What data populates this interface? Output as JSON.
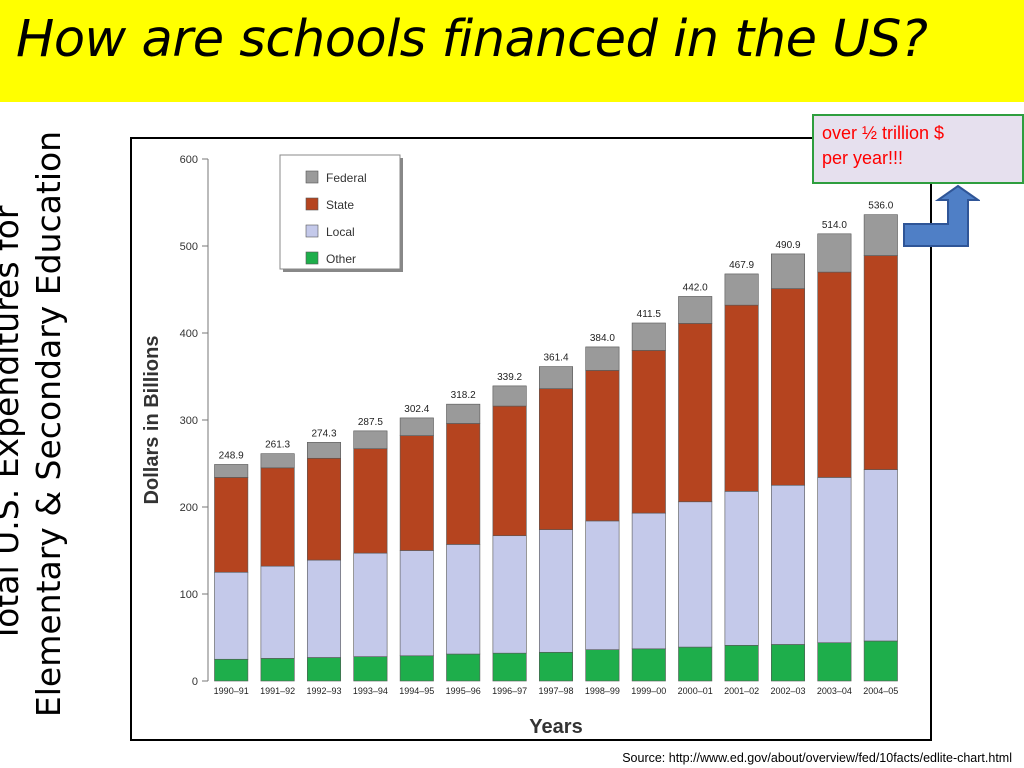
{
  "slide": {
    "title": "How are schools financed in the US?",
    "side_label_lines": [
      "Total U.S. Expenditures for",
      "Elementary & Secondary Education"
    ],
    "callout_lines": [
      "over ½ trillion $",
      "per year!!!"
    ],
    "source": "Source: http://www.ed.gov/about/overview/fed/10facts/edlite-chart.html"
  },
  "colors": {
    "title_bar": "#ffff00",
    "Federal": "#9a9a9a",
    "State": "#b5441f",
    "Local": "#c4c9ea",
    "Other": "#1eae4b",
    "callout_text": "#ff0000",
    "arrow": "#4f7fc6"
  },
  "chart_data": {
    "type": "bar",
    "stacked": true,
    "xlabel": "Years",
    "ylabel": "Dollars in Billions",
    "ylim": [
      0,
      600
    ],
    "yticks": [
      0,
      100,
      200,
      300,
      400,
      500,
      600
    ],
    "grid": false,
    "legend_position": "top-left",
    "categories": [
      "1990–91",
      "1991–92",
      "1992–93",
      "1993–94",
      "1994–95",
      "1995–96",
      "1996–97",
      "1997–98",
      "1998–99",
      "1999–00",
      "2000–01",
      "2001–02",
      "2002–03",
      "2003–04",
      "2004–05"
    ],
    "totals": [
      248.9,
      261.3,
      274.3,
      287.5,
      302.4,
      318.2,
      339.2,
      361.4,
      384.0,
      411.5,
      442.0,
      467.9,
      490.9,
      514.0,
      536.0
    ],
    "series": [
      {
        "name": "Other",
        "values": [
          25,
          26,
          27,
          28,
          29,
          31,
          32,
          33,
          36,
          37,
          39,
          41,
          42,
          44,
          46
        ]
      },
      {
        "name": "Local",
        "values": [
          100,
          106,
          112,
          119,
          121,
          126,
          135,
          141,
          148,
          156,
          167,
          177,
          183,
          190,
          197
        ]
      },
      {
        "name": "State",
        "values": [
          109,
          113,
          117,
          120,
          132,
          139,
          149,
          162,
          173,
          187,
          205,
          214,
          226,
          236,
          246
        ]
      },
      {
        "name": "Federal",
        "values": [
          14.9,
          16.3,
          18.3,
          20.5,
          20.4,
          22.2,
          23.2,
          25.4,
          27.0,
          31.5,
          31.0,
          35.9,
          39.9,
          44.0,
          47.0
        ]
      }
    ],
    "legend": [
      "Federal",
      "State",
      "Local",
      "Other"
    ]
  }
}
